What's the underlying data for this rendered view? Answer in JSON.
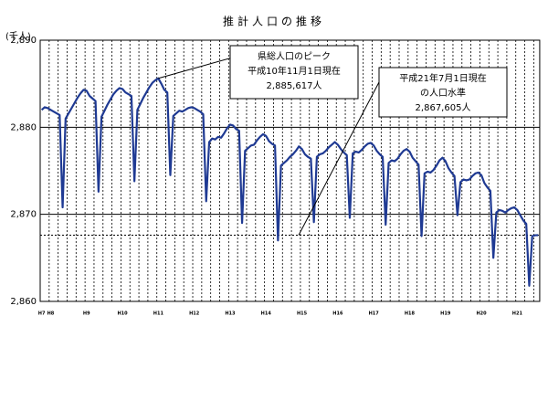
{
  "chart_data": {
    "type": "line",
    "title": "推計人口の推移",
    "y_label": "(千人)",
    "color": "#1f3a93",
    "ylim": [
      2860,
      2890
    ],
    "yticks": [
      {
        "value": 2860,
        "label": "2,860"
      },
      {
        "value": 2870,
        "label": "2,870"
      },
      {
        "value": 2880,
        "label": "2,880"
      },
      {
        "value": 2890,
        "label": "2,890"
      }
    ],
    "grid": true,
    "reference_line": 2867.605,
    "categories": [
      "H7",
      null,
      null,
      "H8",
      null,
      null,
      null,
      null,
      null,
      null,
      null,
      null,
      null,
      null,
      null,
      "H9",
      null,
      null,
      null,
      null,
      null,
      null,
      null,
      null,
      null,
      null,
      null,
      "H10",
      null,
      null,
      null,
      null,
      null,
      null,
      null,
      null,
      null,
      null,
      null,
      "H11",
      null,
      null,
      null,
      null,
      null,
      null,
      null,
      null,
      null,
      null,
      null,
      "H12",
      null,
      null,
      null,
      null,
      null,
      null,
      null,
      null,
      null,
      null,
      null,
      "H13",
      null,
      null,
      null,
      null,
      null,
      null,
      null,
      null,
      null,
      null,
      null,
      "H14",
      null,
      null,
      null,
      null,
      null,
      null,
      null,
      null,
      null,
      null,
      null,
      "H15",
      null,
      null,
      null,
      null,
      null,
      null,
      null,
      null,
      null,
      null,
      null,
      "H16",
      null,
      null,
      null,
      null,
      null,
      null,
      null,
      null,
      null,
      null,
      null,
      "H17",
      null,
      null,
      null,
      null,
      null,
      null,
      null,
      null,
      null,
      null,
      null,
      "H18",
      null,
      null,
      null,
      null,
      null,
      null,
      null,
      null,
      null,
      null,
      null,
      "H19",
      null,
      null,
      null,
      null,
      null,
      null,
      null,
      null,
      null,
      null,
      null,
      "H20",
      null,
      null,
      null,
      null,
      null,
      null,
      null,
      null,
      null,
      null,
      null,
      "H21",
      null,
      null,
      null,
      null,
      null,
      null,
      null
    ],
    "values": [
      2882.0,
      2882.3,
      2882.2,
      2882.0,
      2881.8,
      2881.6,
      2881.4,
      2870.8,
      2881.0,
      2881.6,
      2882.2,
      2882.8,
      2883.4,
      2883.9,
      2884.3,
      2884.2,
      2883.6,
      2883.3,
      2883.0,
      2872.6,
      2881.2,
      2881.9,
      2882.6,
      2883.2,
      2883.8,
      2884.2,
      2884.5,
      2884.4,
      2884.0,
      2883.8,
      2883.6,
      2873.8,
      2882.0,
      2882.7,
      2883.4,
      2884.0,
      2884.6,
      2885.1,
      2885.4,
      2885.617,
      2885.0,
      2884.3,
      2884.0,
      2874.5,
      2881.3,
      2881.6,
      2881.9,
      2881.8,
      2882.0,
      2882.2,
      2882.3,
      2882.2,
      2882.0,
      2881.8,
      2881.5,
      2871.5,
      2878.3,
      2878.7,
      2878.6,
      2878.9,
      2878.8,
      2879.3,
      2879.9,
      2880.3,
      2880.2,
      2879.8,
      2879.6,
      2869.0,
      2877.3,
      2877.6,
      2877.9,
      2878.0,
      2878.5,
      2878.9,
      2879.2,
      2879.0,
      2878.4,
      2878.1,
      2877.9,
      2867.0,
      2875.6,
      2875.9,
      2876.2,
      2876.6,
      2876.9,
      2877.3,
      2877.8,
      2877.5,
      2876.9,
      2876.6,
      2876.4,
      2869.1,
      2876.6,
      2876.9,
      2877.0,
      2877.3,
      2877.7,
      2878.0,
      2878.3,
      2878.0,
      2877.5,
      2877.1,
      2876.8,
      2869.6,
      2877.0,
      2877.2,
      2877.1,
      2877.4,
      2877.8,
      2878.1,
      2878.2,
      2877.9,
      2877.3,
      2876.9,
      2876.6,
      2868.8,
      2875.9,
      2876.2,
      2876.1,
      2876.4,
      2876.9,
      2877.3,
      2877.5,
      2877.2,
      2876.5,
      2876.1,
      2875.7,
      2867.5,
      2874.7,
      2874.9,
      2874.8,
      2875.1,
      2875.6,
      2876.2,
      2876.5,
      2876.1,
      2875.3,
      2874.8,
      2874.4,
      2869.9,
      2873.7,
      2874.0,
      2873.9,
      2874.0,
      2874.4,
      2874.7,
      2874.8,
      2874.5,
      2873.6,
      2873.1,
      2872.7,
      2865.0,
      2870.2,
      2870.5,
      2870.4,
      2870.2,
      2870.5,
      2870.7,
      2870.8,
      2870.5,
      2869.9,
      2869.3,
      2868.9,
      2861.8,
      2867.5,
      2867.6,
      2867.605
    ],
    "annotations": [
      {
        "lines": [
          "県総人口のピーク",
          "平成10年11月1日現在",
          "2,885,617人"
        ]
      },
      {
        "lines": [
          "平成21年7月1日現在",
          "の人口水準",
          "2,867,605人"
        ]
      }
    ]
  }
}
